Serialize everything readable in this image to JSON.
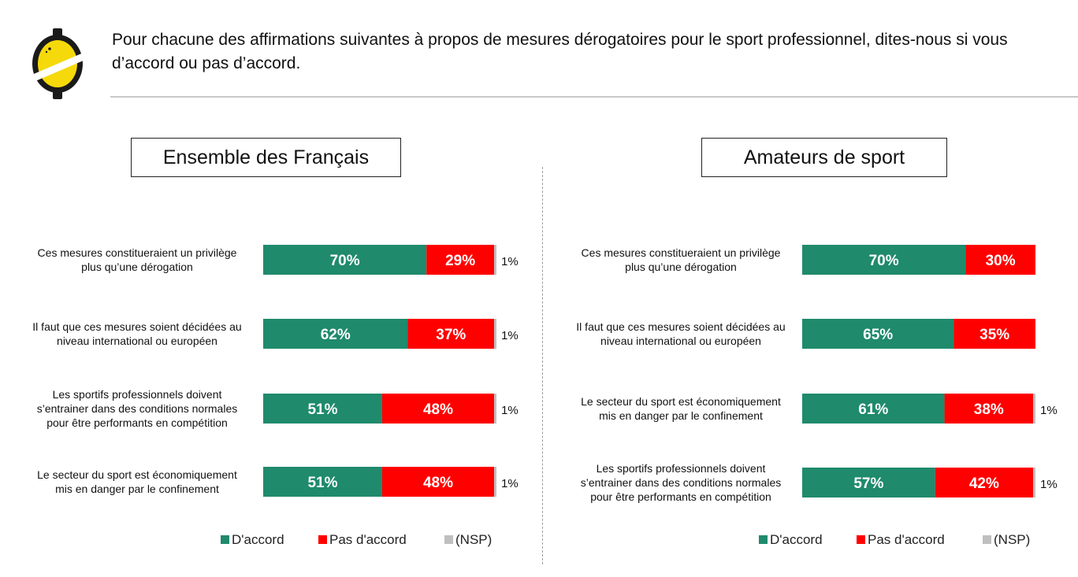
{
  "header": {
    "title": "Pour chacune des affirmations suivantes à propos de mesures dérogatoires pour le sport professionnel, dites-nous si vous d’accord ou pas d’accord."
  },
  "colors": {
    "accord": "#1f8a6c",
    "pas_accord": "#ff0000",
    "nsp": "#bfbfbf"
  },
  "chart_data": [
    {
      "type": "bar",
      "orientation": "horizontal",
      "stacked": true,
      "title": "Ensemble des Français",
      "categories": [
        [
          "Ces mesures constitueraient un privilège",
          "plus qu’une dérogation"
        ],
        [
          "Il faut que ces mesures soient décidées au",
          "niveau international ou européen"
        ],
        [
          "Les sportifs professionnels doivent",
          "s’entrainer dans des conditions normales",
          "pour être performants en compétition"
        ],
        [
          "Le secteur du sport est économiquement",
          "mis en danger par le confinement"
        ]
      ],
      "series": [
        {
          "name": "D'accord",
          "values": [
            70,
            62,
            51,
            51
          ],
          "labels": [
            "70%",
            "62%",
            "51%",
            "51%"
          ]
        },
        {
          "name": "Pas d'accord",
          "values": [
            29,
            37,
            48,
            48
          ],
          "labels": [
            "29%",
            "37%",
            "48%",
            "48%"
          ]
        },
        {
          "name": "(NSP)",
          "values": [
            1,
            1,
            1,
            1
          ],
          "labels": [
            "1%",
            "1%",
            "1%",
            "1%"
          ]
        }
      ],
      "xlim": [
        0,
        100
      ],
      "legend": "bottom"
    },
    {
      "type": "bar",
      "orientation": "horizontal",
      "stacked": true,
      "title": "Amateurs de sport",
      "categories": [
        [
          "Ces mesures constitueraient un privilège",
          "plus qu’une dérogation"
        ],
        [
          "Il faut que ces mesures soient décidées au",
          "niveau international ou européen"
        ],
        [
          "Le secteur du sport est économiquement",
          "mis en danger par le confinement"
        ],
        [
          "Les sportifs professionnels doivent",
          "s’entrainer dans des conditions normales",
          "pour être performants en compétition"
        ]
      ],
      "series": [
        {
          "name": "D'accord",
          "values": [
            70,
            65,
            61,
            57
          ],
          "labels": [
            "70%",
            "65%",
            "61%",
            "57%"
          ]
        },
        {
          "name": "Pas d'accord",
          "values": [
            30,
            35,
            38,
            42
          ],
          "labels": [
            "30%",
            "35%",
            "38%",
            "42%"
          ]
        },
        {
          "name": "(NSP)",
          "values": [
            0,
            0,
            1,
            1
          ],
          "labels": [
            "",
            "",
            "1%",
            "1%"
          ]
        }
      ],
      "xlim": [
        0,
        100
      ],
      "legend": "bottom"
    }
  ]
}
